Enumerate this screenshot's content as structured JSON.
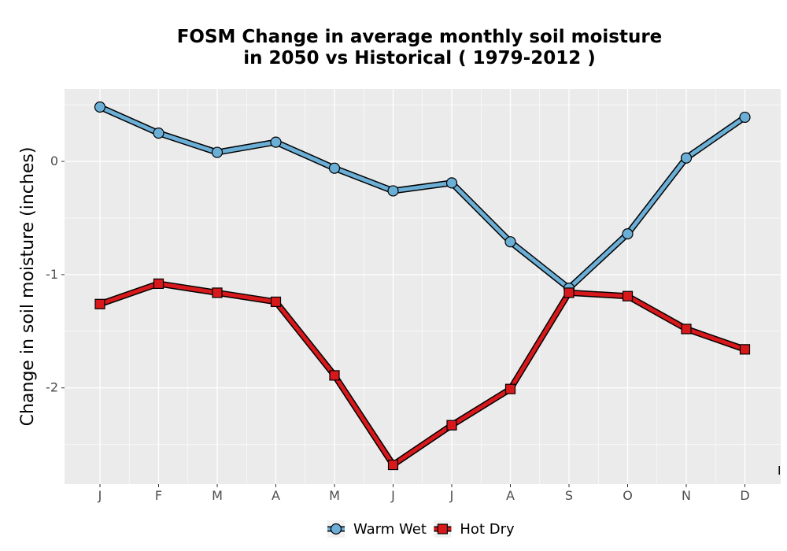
{
  "chart_data": {
    "type": "line",
    "title": [
      "FOSM  Change in average monthly soil moisture",
      "in 2050 vs Historical ( 1979-2012 )"
    ],
    "xlabel": "",
    "ylabel": "Change in soil moisture (inches)",
    "categories": [
      "J",
      "F",
      "M",
      "A",
      "M",
      "J",
      "J",
      "A",
      "S",
      "O",
      "N",
      "D"
    ],
    "y_ticks": [
      0,
      -1,
      -2
    ],
    "y_tick_labels": [
      "0",
      "-1",
      "-2"
    ],
    "ylim": [
      -2.85,
      0.64
    ],
    "grid": true,
    "legend_position": "bottom",
    "corner_mark": "I",
    "colors": {
      "panel": "#ebebeb",
      "grid_major": "#ffffff",
      "outline": "#000000"
    },
    "series": [
      {
        "name": "Warm Wet",
        "marker": "circle",
        "color": "#6baed6",
        "values": [
          0.48,
          0.25,
          0.08,
          0.17,
          -0.06,
          -0.26,
          -0.19,
          -0.71,
          -1.12,
          -0.64,
          0.03,
          0.39
        ]
      },
      {
        "name": "Hot Dry",
        "marker": "square",
        "color": "#d7191c",
        "values": [
          -1.26,
          -1.08,
          -1.16,
          -1.24,
          -1.89,
          -2.68,
          -2.33,
          -2.01,
          -1.16,
          -1.19,
          -1.48,
          -1.66
        ]
      }
    ]
  }
}
